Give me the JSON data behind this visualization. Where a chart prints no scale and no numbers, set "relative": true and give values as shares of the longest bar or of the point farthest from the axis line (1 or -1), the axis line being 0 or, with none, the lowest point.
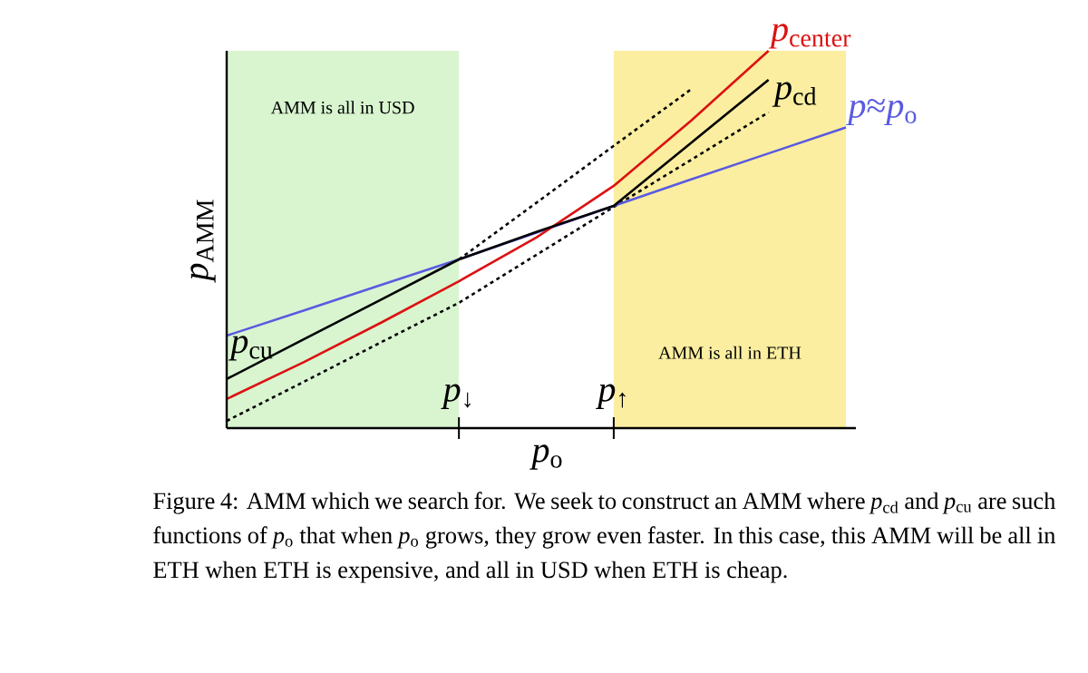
{
  "chart_data": {
    "type": "line",
    "relative": true,
    "xlabel": "*p*$_{o}$",
    "ylabel": "*p*$_{AMM}$",
    "categories": [
      null,
      null,
      null,
      "*p*$_{↓}$",
      null,
      "*p*$_{↑}$",
      null,
      null,
      null
    ],
    "series": [
      {
        "color": "#000000",
        "line_style": "dotted",
        "values": [
          0.019,
          0.123,
          0.228,
          0.332,
          0.459,
          0.586,
          0.711,
          0.837,
          null
        ]
      },
      {
        "color": "#000000",
        "line_style": "dotted",
        "values": [
          null,
          null,
          null,
          0.447,
          0.597,
          0.748,
          0.898,
          null,
          null
        ]
      },
      {
        "name": "*p*≈*p*$_{o}$",
        "color": "#5a5ae0",
        "values": [
          0.245,
          0.312,
          0.38,
          0.447,
          0.518,
          0.589,
          0.659,
          0.728,
          0.797
        ]
      },
      {
        "name": "*p*$_{center}$",
        "color": "#dd1111",
        "values": [
          0.077,
          0.175,
          0.28,
          0.389,
          0.505,
          0.642,
          0.815,
          1.0,
          null
        ]
      },
      {
        "color": "#000000",
        "values": [
          0.13,
          0.236,
          0.341,
          0.447,
          0.52,
          0.589,
          0.756,
          0.923,
          null
        ]
      }
    ],
    "annotations": [
      "*p*$_{cu}$",
      "*p*$_{cd}$",
      "AMM is all in USD",
      "AMM is all in ETH",
      "Figure 4: AMM which we search for. We seek to construct an AMM where *p*$_{cd}$ and *p*$_{cu}$ are such functions of *p*$_{o}$ that when *p*$_{o}$ grows, they grow even faster. In this case, this AMM will be all in ETH when ETH is expensive, and all in USD when ETH is cheap."
    ],
    "legend": false,
    "marker": "none"
  }
}
